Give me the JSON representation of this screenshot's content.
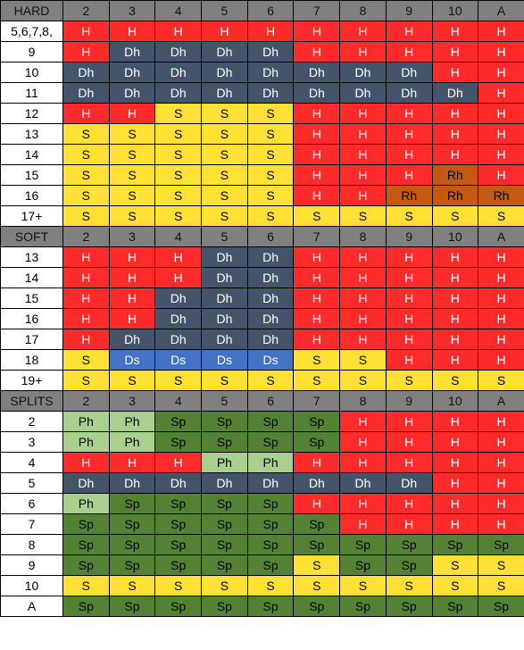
{
  "columns": [
    "2",
    "3",
    "4",
    "5",
    "6",
    "7",
    "8",
    "9",
    "10",
    "A"
  ],
  "colors": {
    "H": "#ff2a2a",
    "S": "#ffe135",
    "Dh": "#44546a",
    "Ds": "#4472c4",
    "Rh": "#c65911",
    "Sp": "#548235",
    "Ph": "#a9d08e",
    "header": "#808080"
  },
  "sections": [
    {
      "title": "HARD",
      "rows": [
        {
          "label": "5,6,7,8,",
          "cells": [
            "H",
            "H",
            "H",
            "H",
            "H",
            "H",
            "H",
            "H",
            "H",
            "H"
          ]
        },
        {
          "label": "9",
          "cells": [
            "H",
            "Dh",
            "Dh",
            "Dh",
            "Dh",
            "H",
            "H",
            "H",
            "H",
            "H"
          ]
        },
        {
          "label": "10",
          "cells": [
            "Dh",
            "Dh",
            "Dh",
            "Dh",
            "Dh",
            "Dh",
            "Dh",
            "Dh",
            "H",
            "H"
          ]
        },
        {
          "label": "11",
          "cells": [
            "Dh",
            "Dh",
            "Dh",
            "Dh",
            "Dh",
            "Dh",
            "Dh",
            "Dh",
            "Dh",
            "H"
          ]
        },
        {
          "label": "12",
          "cells": [
            "H",
            "H",
            "S",
            "S",
            "S",
            "H",
            "H",
            "H",
            "H",
            "H"
          ]
        },
        {
          "label": "13",
          "cells": [
            "S",
            "S",
            "S",
            "S",
            "S",
            "H",
            "H",
            "H",
            "H",
            "H"
          ]
        },
        {
          "label": "14",
          "cells": [
            "S",
            "S",
            "S",
            "S",
            "S",
            "H",
            "H",
            "H",
            "H",
            "H"
          ]
        },
        {
          "label": "15",
          "cells": [
            "S",
            "S",
            "S",
            "S",
            "S",
            "H",
            "H",
            "H",
            "Rh",
            "H"
          ]
        },
        {
          "label": "16",
          "cells": [
            "S",
            "S",
            "S",
            "S",
            "S",
            "H",
            "H",
            "Rh",
            "Rh",
            "Rh"
          ]
        },
        {
          "label": "17+",
          "cells": [
            "S",
            "S",
            "S",
            "S",
            "S",
            "S",
            "S",
            "S",
            "S",
            "S"
          ]
        }
      ]
    },
    {
      "title": "SOFT",
      "rows": [
        {
          "label": "13",
          "cells": [
            "H",
            "H",
            "H",
            "Dh",
            "Dh",
            "H",
            "H",
            "H",
            "H",
            "H"
          ]
        },
        {
          "label": "14",
          "cells": [
            "H",
            "H",
            "H",
            "Dh",
            "Dh",
            "H",
            "H",
            "H",
            "H",
            "H"
          ]
        },
        {
          "label": "15",
          "cells": [
            "H",
            "H",
            "Dh",
            "Dh",
            "Dh",
            "H",
            "H",
            "H",
            "H",
            "H"
          ]
        },
        {
          "label": "16",
          "cells": [
            "H",
            "H",
            "Dh",
            "Dh",
            "Dh",
            "H",
            "H",
            "H",
            "H",
            "H"
          ]
        },
        {
          "label": "17",
          "cells": [
            "H",
            "Dh",
            "Dh",
            "Dh",
            "Dh",
            "H",
            "H",
            "H",
            "H",
            "H"
          ]
        },
        {
          "label": "18",
          "cells": [
            "S",
            "Ds",
            "Ds",
            "Ds",
            "Ds",
            "S",
            "S",
            "H",
            "H",
            "H"
          ]
        },
        {
          "label": "19+",
          "cells": [
            "S",
            "S",
            "S",
            "S",
            "S",
            "S",
            "S",
            "S",
            "S",
            "S"
          ]
        }
      ]
    },
    {
      "title": "SPLITS",
      "rows": [
        {
          "label": "2",
          "cells": [
            "Ph",
            "Ph",
            "Sp",
            "Sp",
            "Sp",
            "Sp",
            "H",
            "H",
            "H",
            "H"
          ]
        },
        {
          "label": "3",
          "cells": [
            "Ph",
            "Ph",
            "Sp",
            "Sp",
            "Sp",
            "Sp",
            "H",
            "H",
            "H",
            "H"
          ]
        },
        {
          "label": "4",
          "cells": [
            "H",
            "H",
            "H",
            "Ph",
            "Ph",
            "H",
            "H",
            "H",
            "H",
            "H"
          ]
        },
        {
          "label": "5",
          "cells": [
            "Dh",
            "Dh",
            "Dh",
            "Dh",
            "Dh",
            "Dh",
            "Dh",
            "Dh",
            "H",
            "H"
          ]
        },
        {
          "label": "6",
          "cells": [
            "Ph",
            "Sp",
            "Sp",
            "Sp",
            "Sp",
            "H",
            "H",
            "H",
            "H",
            "H"
          ]
        },
        {
          "label": "7",
          "cells": [
            "Sp",
            "Sp",
            "Sp",
            "Sp",
            "Sp",
            "Sp",
            "H",
            "H",
            "H",
            "H"
          ]
        },
        {
          "label": "8",
          "cells": [
            "Sp",
            "Sp",
            "Sp",
            "Sp",
            "Sp",
            "Sp",
            "Sp",
            "Sp",
            "Sp",
            "Sp"
          ]
        },
        {
          "label": "9",
          "cells": [
            "Sp",
            "Sp",
            "Sp",
            "Sp",
            "Sp",
            "S",
            "Sp",
            "Sp",
            "S",
            "S"
          ]
        },
        {
          "label": "10",
          "cells": [
            "S",
            "S",
            "S",
            "S",
            "S",
            "S",
            "S",
            "S",
            "S",
            "S"
          ]
        },
        {
          "label": "A",
          "cells": [
            "Sp",
            "Sp",
            "Sp",
            "Sp",
            "Sp",
            "Sp",
            "Sp",
            "Sp",
            "Sp",
            "Sp"
          ]
        }
      ]
    }
  ]
}
